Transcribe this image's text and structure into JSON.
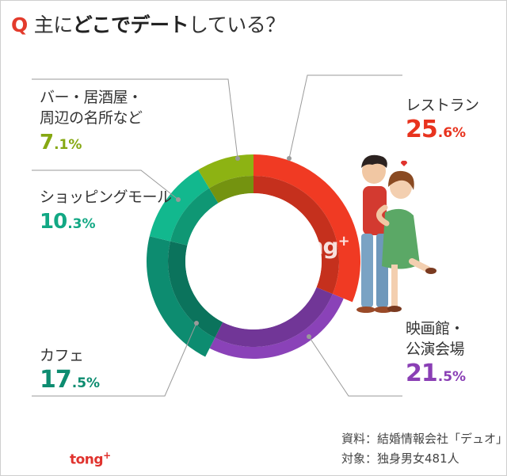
{
  "title": {
    "q": "Q",
    "pre": "主に",
    "strong": "どこでデート",
    "post": "している？"
  },
  "chart_data": {
    "type": "pie",
    "variant": "donut",
    "categories": [
      "レストラン",
      "映画館・公演会場",
      "カフェ",
      "ショッピングモール",
      "バー・居酒屋・周辺の名所など"
    ],
    "values": [
      25.6,
      21.5,
      17.5,
      10.3,
      7.1
    ],
    "colors": [
      "#f03a23",
      "#8a42b8",
      "#0d8c70",
      "#12b88e",
      "#8db313"
    ]
  },
  "labels": {
    "restaurant": {
      "name": "レストラン",
      "num": "25",
      "dec": ".6%"
    },
    "cinema": {
      "line1": "映画館・",
      "line2": "公演会場",
      "num": "21",
      "dec": ".5%"
    },
    "cafe": {
      "name": "カフェ",
      "num": "17",
      "dec": ".5%"
    },
    "mall": {
      "name": "ショッピングモール",
      "num": "10",
      "dec": ".3%"
    },
    "bar": {
      "line1": "バー・居酒屋・",
      "line2": "周辺の名所など",
      "num": "7",
      "dec": ".1%"
    }
  },
  "footer": {
    "source": "資料：結婚情報会社「デュオ」",
    "target": "対象：独身男女481人"
  },
  "brand": {
    "text": "tong",
    "plus": "+"
  },
  "watermark": {
    "text": "tong",
    "plus": "+"
  },
  "illustration": {
    "icon": "kissing-couple-illustration"
  }
}
